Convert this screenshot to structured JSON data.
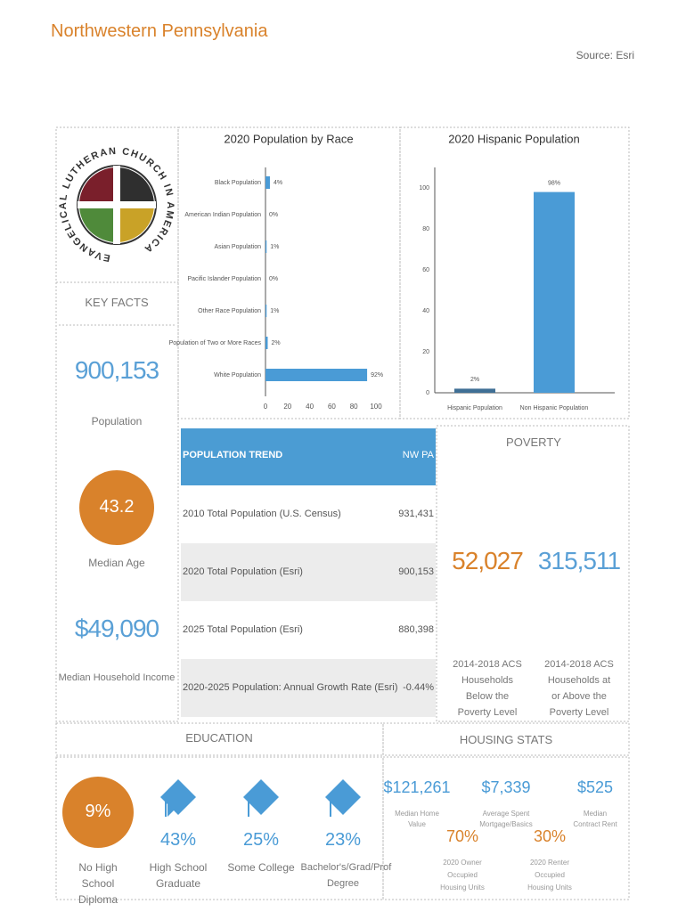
{
  "header": {
    "title": "Northwestern Pennsylvania",
    "source": "Source: Esri"
  },
  "logo": {
    "text": "EVANGELICAL LUTHERAN CHURCH IN AMERICA"
  },
  "key_facts": {
    "title": "KEY FACTS",
    "items": [
      {
        "value": "900,153",
        "label": "Population"
      },
      {
        "value": "43.2",
        "label": "Median Age"
      },
      {
        "value": "$49,090",
        "label": "Median Household Income"
      }
    ]
  },
  "chart_data": [
    {
      "type": "hbar",
      "title": "2020 Population by Race",
      "categories": [
        "Black Population",
        "American Indian Population",
        "Asian Population",
        "Pacific Islander Population",
        "Other Race Population",
        "Population of Two or More Races",
        "White Population"
      ],
      "values": [
        4,
        0,
        1,
        0,
        1,
        2,
        92
      ],
      "value_labels": [
        "4%",
        "0%",
        "1%",
        "0%",
        "1%",
        "2%",
        "92%"
      ],
      "color": "#4a9bd6",
      "xlim": [
        0,
        100
      ],
      "xticks": [
        0,
        20,
        40,
        60,
        80,
        100
      ]
    },
    {
      "type": "bar",
      "title": "2020 Hispanic Population",
      "categories": [
        "Hispanic Population",
        "Non Hispanic Population"
      ],
      "values": [
        2,
        98
      ],
      "value_labels": [
        "2%",
        "98%"
      ],
      "colors": [
        "#3f6f95",
        "#4a9bd6"
      ],
      "ylim": [
        0,
        110
      ],
      "yticks": [
        0,
        20,
        40,
        60,
        80,
        100
      ]
    }
  ],
  "population_trend": {
    "header": [
      "POPULATION TREND",
      "NW PA"
    ],
    "rows": [
      [
        "2010 Total Population (U.S. Census)",
        "931,431"
      ],
      [
        "2020 Total Population (Esri)",
        "900,153"
      ],
      [
        "2025 Total Population (Esri)",
        "880,398"
      ],
      [
        "2020-2025 Population: Annual Growth Rate (Esri)",
        "-0.44%"
      ]
    ]
  },
  "poverty": {
    "title": "POVERTY",
    "items": [
      {
        "value": "52,027",
        "label": "2014-2018 ACS Households Below the Poverty Level"
      },
      {
        "value": "315,511",
        "label": "2014-2018 ACS Households at or Above the Poverty Level"
      }
    ]
  },
  "education": {
    "title": "EDUCATION",
    "items": [
      {
        "value": "9%",
        "label": "No High School Diploma"
      },
      {
        "value": "43%",
        "label": "High School Graduate"
      },
      {
        "value": "25%",
        "label": "Some College"
      },
      {
        "value": "23%",
        "label": "Bachelor's/Grad/Prof Degree"
      }
    ]
  },
  "housing": {
    "title": "HOUSING STATS",
    "items": [
      {
        "value": "$121,261",
        "label": "Median Home Value"
      },
      {
        "value": "$7,339",
        "label": "Average Spent Mortgage/Basics"
      },
      {
        "value": "$525",
        "label": "Median Contract Rent"
      },
      {
        "value": "70%",
        "label": "2020 Owner Occupied Housing Units"
      },
      {
        "value": "30%",
        "label": "2020 Renter Occupied Housing Units"
      }
    ]
  }
}
